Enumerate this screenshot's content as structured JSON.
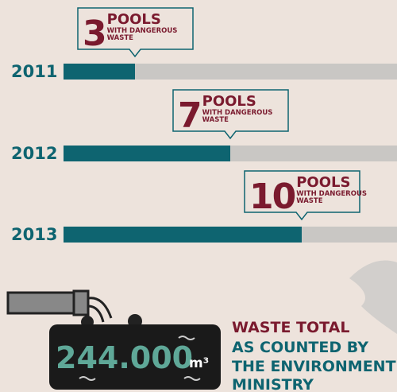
{
  "chart_data": {
    "type": "bar",
    "categories": [
      "2011",
      "2012",
      "2013"
    ],
    "values": [
      3,
      7,
      10
    ],
    "xlim": [
      0,
      14
    ],
    "color": "#0e6470",
    "track_color": "#c9c7c4",
    "label_color": "#7a1a2e",
    "callout_title": "POOLS",
    "callout_subtitle": [
      "WITH DANGEROUS",
      "WASTE"
    ]
  },
  "total": {
    "amount": "244.000",
    "unit": "m³",
    "caption": [
      "WASTE TOTAL",
      "AS COUNTED BY",
      "THE ENVIRONMENT",
      "MINISTRY"
    ]
  }
}
